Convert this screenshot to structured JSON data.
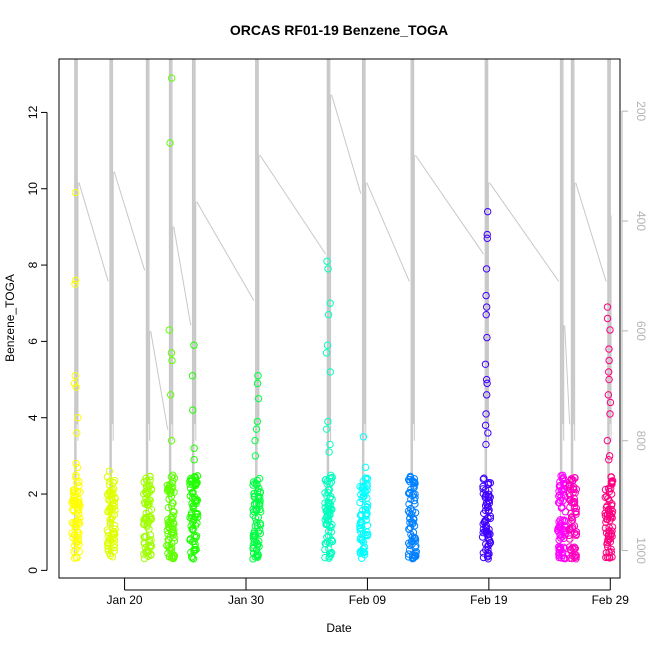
{
  "chart_data": {
    "type": "scatter",
    "title": "ORCAS RF01-19 Benzene_TOGA",
    "xlabel": "Date",
    "ylabel": "Benzene_TOGA",
    "xlim": [
      14.6,
      60.8
    ],
    "ylim": [
      -0.2,
      13.4
    ],
    "yticks": [
      0,
      2,
      4,
      6,
      8,
      10,
      12
    ],
    "xticks": [
      {
        "day": 20,
        "label": "Jan 20"
      },
      {
        "day": 30,
        "label": "Jan 30"
      },
      {
        "day": 40,
        "label": "Feb 09"
      },
      {
        "day": 50,
        "label": "Feb 19"
      },
      {
        "day": 60,
        "label": "Feb 29"
      }
    ],
    "right_axis": {
      "label_values": [
        200,
        400,
        600,
        800,
        1000
      ],
      "ylim_inverted": [
        1050,
        105
      ]
    },
    "flights": [
      {
        "day": 16.0,
        "color": "#ffff00",
        "hi": [
          9.9,
          7.6,
          7.5,
          5.1,
          4.9,
          4.8,
          4.0,
          3.6,
          2.8,
          2.7
        ]
      },
      {
        "day": 18.9,
        "color": "#dfff00",
        "hi": [
          2.6,
          2.3,
          2.1
        ]
      },
      {
        "day": 21.9,
        "color": "#9fff00",
        "hi": [
          2.1,
          2.0
        ]
      },
      {
        "day": 23.8,
        "color": "#5fff00",
        "hi": [
          12.9,
          11.2,
          6.3,
          5.7,
          5.5,
          4.6,
          3.4
        ]
      },
      {
        "day": 25.7,
        "color": "#20ff00",
        "hi": [
          5.9,
          5.1,
          4.2,
          3.2,
          2.9
        ]
      },
      {
        "day": 30.9,
        "color": "#00ff40",
        "hi": [
          5.1,
          4.9,
          4.5,
          3.9,
          3.7,
          3.4,
          3.0
        ]
      },
      {
        "day": 36.8,
        "color": "#00ffbf",
        "hi": [
          8.1,
          7.9,
          7.0,
          6.7,
          5.9,
          5.7,
          5.2,
          3.9,
          3.7,
          3.3,
          3.1
        ]
      },
      {
        "day": 39.7,
        "color": "#00ffff",
        "hi": [
          3.5,
          2.7
        ]
      },
      {
        "day": 43.7,
        "color": "#0080ff",
        "hi": [
          2.4,
          2.3
        ]
      },
      {
        "day": 49.8,
        "color": "#4000ff",
        "hi": [
          9.4,
          8.8,
          8.7,
          7.9,
          7.2,
          6.9,
          6.7,
          6.1,
          5.4,
          5.0,
          4.9,
          4.6,
          4.1,
          3.8,
          3.6,
          3.3
        ]
      },
      {
        "day": 56.0,
        "color": "#ff00ff",
        "hi": [
          2.4,
          2.1
        ]
      },
      {
        "day": 56.9,
        "color": "#ff00bf",
        "hi": [
          1.8
        ]
      },
      {
        "day": 59.9,
        "color": "#ff0080",
        "hi": [
          6.9,
          6.6,
          6.3,
          5.8,
          5.5,
          5.2,
          5.0,
          4.6,
          4.4,
          4.1,
          3.4,
          3.0,
          2.9
        ]
      }
    ]
  },
  "colors": {
    "altitude_line": "#c8c8c8",
    "axis": "#000000"
  }
}
